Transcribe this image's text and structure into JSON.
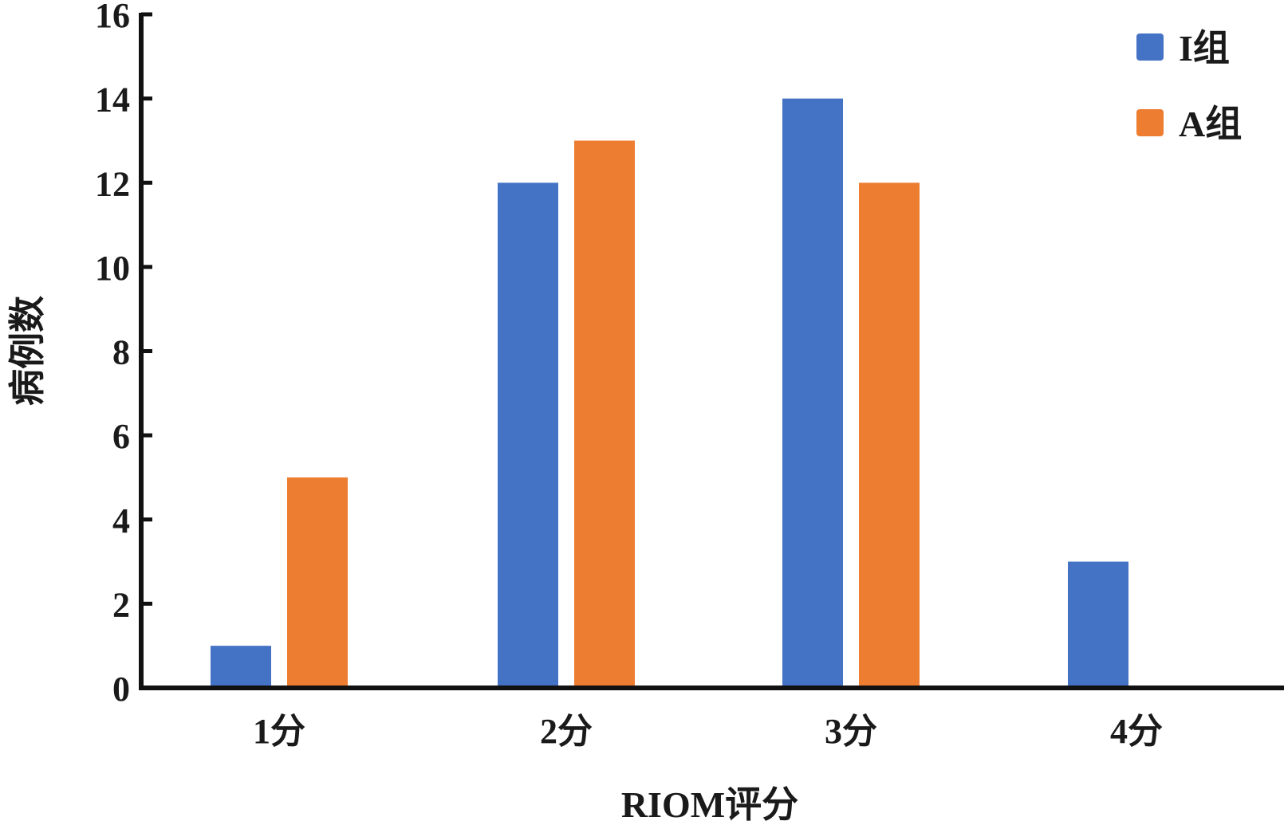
{
  "chart_data": {
    "type": "bar",
    "title": "",
    "xlabel": "RIOM评分",
    "ylabel": "病例数",
    "categories": [
      "1分",
      "2分",
      "3分",
      "4分"
    ],
    "series": [
      {
        "name": "I组",
        "color": "#4472c4",
        "values": [
          1,
          12,
          14,
          3
        ]
      },
      {
        "name": "A组",
        "color": "#ed7d31",
        "values": [
          5,
          13,
          12,
          0
        ]
      }
    ],
    "ylim": [
      0,
      16
    ],
    "yticks": [
      0,
      2,
      4,
      6,
      8,
      10,
      12,
      14,
      16
    ],
    "grid": false,
    "legend": "top-right"
  }
}
